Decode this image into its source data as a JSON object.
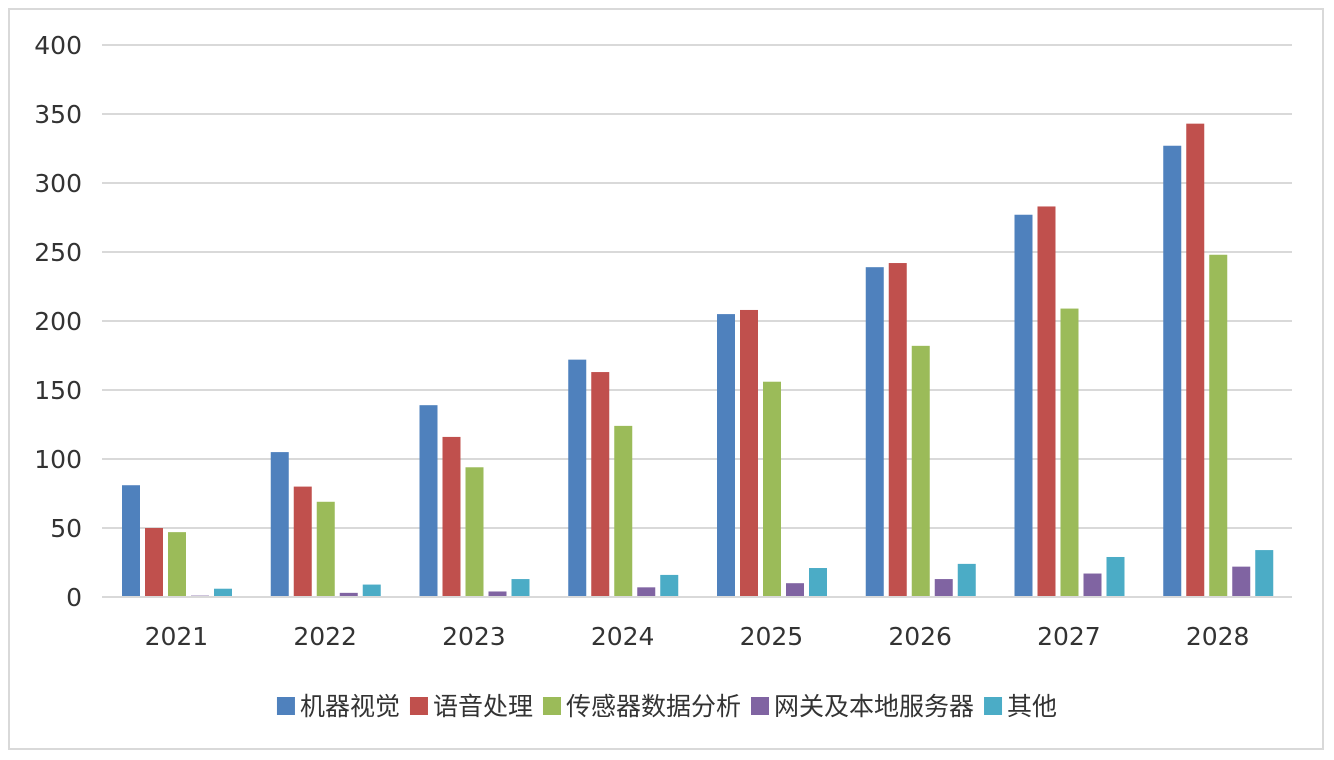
{
  "chart_data": {
    "type": "bar",
    "title": "",
    "xlabel": "",
    "ylabel": "",
    "categories": [
      "2021",
      "2022",
      "2023",
      "2024",
      "2025",
      "2026",
      "2027",
      "2028"
    ],
    "ylim": [
      0,
      400
    ],
    "yticks": [
      0,
      50,
      100,
      150,
      200,
      250,
      300,
      350,
      400
    ],
    "grid": true,
    "legend_position": "bottom",
    "series": [
      {
        "name": "机器视觉",
        "color": "#4f81bd",
        "values": [
          81,
          105,
          139,
          172,
          205,
          239,
          277,
          327
        ]
      },
      {
        "name": "语音处理",
        "color": "#c0504d",
        "values": [
          50,
          80,
          116,
          163,
          208,
          242,
          283,
          343
        ]
      },
      {
        "name": "传感器数据分析",
        "color": "#9bbb59",
        "values": [
          47,
          69,
          94,
          124,
          156,
          182,
          209,
          248
        ]
      },
      {
        "name": "网关及本地服务器",
        "color": "#8064a2",
        "values": [
          1,
          3,
          4,
          7,
          10,
          13,
          17,
          22
        ]
      },
      {
        "name": "其他",
        "color": "#4bacc6",
        "values": [
          6,
          9,
          13,
          16,
          21,
          24,
          29,
          34
        ]
      }
    ]
  }
}
